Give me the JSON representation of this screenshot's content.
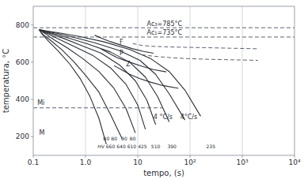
{
  "chart_data": {
    "type": "line",
    "xlabel": "tempo, (s)",
    "ylabel": "temperatura, °C",
    "log": "x",
    "xlim": [
      0.1,
      10000
    ],
    "ylim": [
      100,
      900
    ],
    "xticks": [
      0.1,
      {
        "value": 1,
        "label": "1.0"
      },
      10,
      {
        "value": 100,
        "label": "10²"
      },
      {
        "value": 1000,
        "label": "10³"
      },
      {
        "value": 10000,
        "label": "10⁴"
      }
    ],
    "yticks": [
      200,
      400,
      600,
      800
    ],
    "grid": "x",
    "hlines": [
      {
        "value": 785,
        "line_style": "dashed"
      },
      {
        "value": 735,
        "line_style": "dashed"
      }
    ],
    "series": [
      {
        "x": [
          0.13,
          0.14,
          0.16,
          0.2,
          0.3,
          0.5,
          0.8,
          1.2,
          1.8,
          2.5
        ],
        "values": [
          775,
          760,
          740,
          710,
          660,
          590,
          510,
          420,
          300,
          160
        ],
        "line_style": "solid"
      },
      {
        "x": [
          0.13,
          0.14,
          0.16,
          0.22,
          0.35,
          0.6,
          1.0,
          1.8,
          3.0,
          5.0
        ],
        "values": [
          775,
          762,
          745,
          715,
          668,
          602,
          530,
          440,
          320,
          190
        ],
        "line_style": "solid"
      },
      {
        "x": [
          0.13,
          0.15,
          0.18,
          0.25,
          0.45,
          0.9,
          1.8,
          3.5,
          6.0,
          9.0
        ],
        "values": [
          775,
          763,
          748,
          720,
          677,
          618,
          550,
          460,
          350,
          220
        ],
        "line_style": "solid"
      },
      {
        "x": [
          0.13,
          0.15,
          0.2,
          0.3,
          0.6,
          1.4,
          3.0,
          6.0,
          10,
          14
        ],
        "values": [
          775,
          764,
          750,
          725,
          685,
          635,
          570,
          480,
          370,
          240
        ],
        "line_style": "solid"
      },
      {
        "x": [
          0.13,
          0.16,
          0.22,
          0.38,
          0.8,
          2.0,
          4.5,
          9.0,
          15,
          22
        ],
        "values": [
          775,
          765,
          752,
          728,
          692,
          648,
          585,
          500,
          395,
          265
        ],
        "line_style": "solid"
      },
      {
        "x": [
          0.13,
          0.16,
          0.24,
          0.45,
          1.1,
          3.0,
          7.0,
          14,
          24,
          40
        ],
        "values": [
          775,
          766,
          754,
          732,
          698,
          655,
          600,
          520,
          415,
          280
        ],
        "line_style": "solid"
      },
      {
        "x": [
          0.13,
          0.17,
          0.27,
          0.55,
          1.5,
          4.5,
          11,
          22,
          40,
          80
        ],
        "values": [
          775,
          767,
          756,
          736,
          704,
          662,
          610,
          535,
          430,
          290
        ],
        "line_style": "solid"
      },
      {
        "x": [
          0.13,
          0.18,
          0.3,
          0.7,
          2.2,
          7.0,
          18,
          40,
          80,
          160
        ],
        "values": [
          775,
          768,
          758,
          740,
          710,
          668,
          618,
          550,
          450,
          310
        ],
        "line_style": "solid"
      },
      {
        "x": [
          1.5,
          2.0,
          3.0,
          5.0,
          8.0,
          13,
          20
        ],
        "values": [
          745,
          730,
          710,
          690,
          672,
          658,
          648
        ],
        "line_style": "solid"
      },
      {
        "x": [
          2.0,
          2.8,
          4.0,
          7.0,
          12,
          20,
          35
        ],
        "values": [
          670,
          648,
          625,
          600,
          578,
          560,
          548
        ],
        "line_style": "solid"
      },
      {
        "x": [
          3.5,
          5.0,
          7.0,
          11,
          18,
          30,
          60
        ],
        "values": [
          582,
          558,
          535,
          512,
          492,
          475,
          460
        ],
        "line_style": "solid"
      },
      {
        "x": [
          8,
          12,
          20,
          40,
          80,
          200,
          600,
          2000
        ],
        "values": [
          700,
          690,
          685,
          682,
          680,
          678,
          675,
          672
        ],
        "line_style": "dashed"
      },
      {
        "x": [
          12,
          20,
          40,
          80,
          200,
          600,
          2000
        ],
        "values": [
          640,
          632,
          625,
          620,
          616,
          613,
          610
        ],
        "line_style": "dashed"
      },
      {
        "x": [
          0.1,
          30
        ],
        "values": [
          355,
          355
        ],
        "line_style": "dashed"
      }
    ],
    "annotations": [
      {
        "text": "Ac₃=785°C",
        "x": 15,
        "y": 792
      },
      {
        "text": "Ac₁=735°C",
        "x": 15,
        "y": 742
      },
      {
        "text": "F",
        "x": 4.5,
        "y": 692
      },
      {
        "text": "P",
        "x": 4.5,
        "y": 632
      },
      {
        "text": "Z",
        "x": 6.0,
        "y": 572
      },
      {
        "text": "Mi",
        "x": 0.12,
        "y": 365
      },
      {
        "text": "M",
        "x": 0.13,
        "y": 205
      },
      {
        "text": "4 °C/s",
        "x": 20,
        "y": 290
      },
      {
        "text": "4°C/s",
        "x": 65,
        "y": 290
      }
    ],
    "label_rows": [
      {
        "labels": [
          "B0",
          "B0",
          "B0",
          "B0"
        ],
        "x": [
          2.5,
          3.5,
          5.5,
          8.0
        ],
        "y": 175
      },
      {
        "labels": [
          "HV 660",
          "640",
          "610",
          "425",
          "510",
          "390",
          "235"
        ],
        "x": [
          2.5,
          3.5,
          5.5,
          8.5,
          22,
          45,
          250
        ],
        "y": 135
      }
    ]
  }
}
